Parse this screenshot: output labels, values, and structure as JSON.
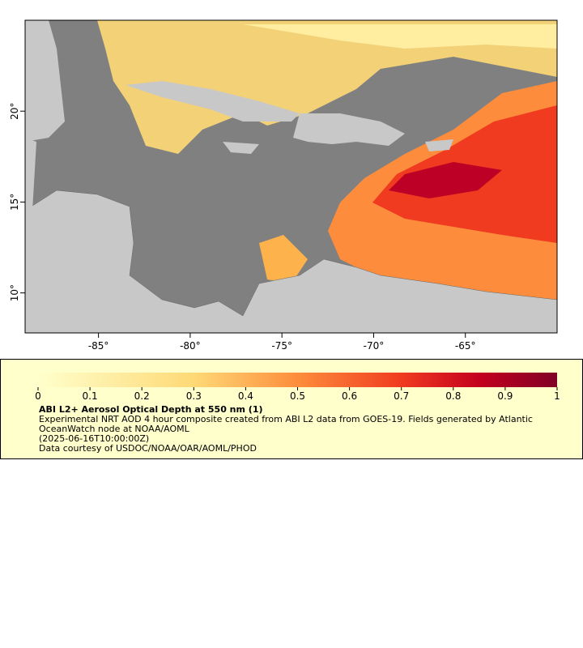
{
  "map": {
    "type": "map",
    "xlim": [
      -89,
      -60
    ],
    "ylim": [
      7.8,
      25
    ],
    "xticks": [
      {
        "value": -85,
        "label": "-85°"
      },
      {
        "value": -80,
        "label": "-80°"
      },
      {
        "value": -75,
        "label": "-75°"
      },
      {
        "value": -70,
        "label": "-70°"
      },
      {
        "value": -65,
        "label": "-65°"
      }
    ],
    "yticks": [
      {
        "value": 10,
        "label": "10°"
      },
      {
        "value": 15,
        "label": "15°"
      },
      {
        "value": 20,
        "label": "20°"
      }
    ]
  },
  "colorbar": {
    "range": [
      0,
      1
    ],
    "ticks": [
      0,
      0.1,
      0.2,
      0.3,
      0.4,
      0.5,
      0.6,
      0.7,
      0.8,
      0.9,
      1
    ]
  },
  "legend": {
    "title": "ABI L2+ Aerosol Optical Depth at 550 nm (1)",
    "description": "Experimental NRT AOD 4 hour composite created from ABI L2 data from GOES-19. Fields generated by Atlantic OceanWatch node at NOAA/AOML",
    "time": "(2025-06-16T10:00:00Z)",
    "credit": "Data courtesy of USDOC/NOAA/OAR/AOML/PHOD"
  }
}
